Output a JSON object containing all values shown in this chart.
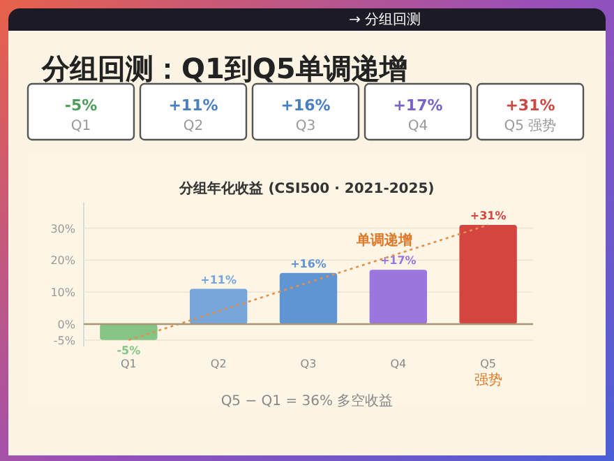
{
  "chart_data": [
    {
      "type": "other",
      "title": "分组回测：Q1到Q5单调递增",
      "annotations": [
        "→ 分组回测"
      ],
      "categories": [
        "Q1",
        "Q2",
        "Q3",
        "Q4",
        "Q5 强势"
      ],
      "value_labels": [
        "-5%",
        "+11%",
        "+16%",
        "+17%",
        "+31%"
      ],
      "colors": [
        "#4f9d5c",
        "#4a7fc0",
        "#4a7fc0",
        "#7a62c8",
        "#c94a44"
      ]
    },
    {
      "type": "bar",
      "title": "分组年化收益 (CSI500 · 2021-2025)",
      "categories": [
        "Q1",
        "Q2",
        "Q3",
        "Q4",
        "Q5 强势"
      ],
      "series": [
        {
          "colors": [
            "#86c486",
            "#77a6da",
            "#5f95d3",
            "#9a76df",
            "#d4453f"
          ],
          "values": [
            -5,
            11,
            16,
            17,
            31
          ],
          "value_labels": [
            "-5%",
            "+11%",
            "+16%",
            "+17%",
            "+31%"
          ]
        },
        {
          "type": "line",
          "color": "#e2904a",
          "line_style": "dotted",
          "values": [
            -5,
            null,
            null,
            null,
            31
          ]
        }
      ],
      "ylim": [
        -7,
        38
      ],
      "yticks": [
        {
          "value": -5,
          "label": "-5%"
        },
        {
          "value": 0,
          "label": "0%"
        },
        {
          "value": 10,
          "label": "10%"
        },
        {
          "value": 20,
          "label": "20%"
        },
        {
          "value": 30,
          "label": "30%"
        }
      ],
      "grid": "y",
      "ref_lines": [
        {
          "axis": "y",
          "value": 0,
          "color": "#a89878"
        }
      ],
      "annotations": [
        "单调递增",
        "Q5 − Q1 = 36% 多空收益"
      ]
    }
  ]
}
